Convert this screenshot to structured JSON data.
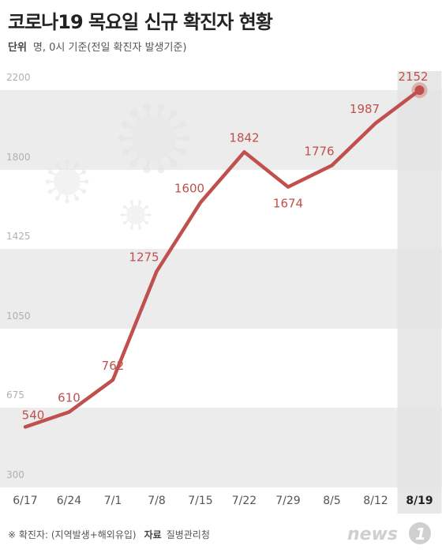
{
  "header": {
    "title": "코로나19 목요일 신규 확진자 현황",
    "unit_label": "단위",
    "unit_text": "명, 0시 기준(전일 확진자 발생기준)"
  },
  "footer": {
    "note": "※ 확진자: (지역발생+해외유입)",
    "source_label": "자료",
    "source_text": "질병관리청",
    "logo_text": "news1"
  },
  "colors": {
    "line": "#c0504d",
    "label": "#c0504d",
    "band": "#ececec",
    "highlight_column": "#e4e4e4",
    "tick": "#b0b0b0"
  },
  "icons": [
    "virus-icon",
    "virus-icon",
    "virus-icon"
  ],
  "chart_data": {
    "type": "line",
    "title": "코로나19 목요일 신규 확진자 현황",
    "xlabel": "",
    "ylabel": "",
    "categories": [
      "6/17",
      "6/24",
      "7/1",
      "7/8",
      "7/15",
      "7/22",
      "7/29",
      "8/5",
      "8/12",
      "8/19"
    ],
    "series": [
      {
        "values": [
          540,
          610,
          762,
          1275,
          1600,
          1842,
          1674,
          1776,
          1987,
          2152
        ]
      }
    ],
    "yticks": [
      300,
      675,
      1050,
      1425,
      1800,
      2200
    ],
    "ylim": [
      300,
      2200
    ],
    "grid": "alternating horizontal bands",
    "highlight_category": "8/19"
  }
}
